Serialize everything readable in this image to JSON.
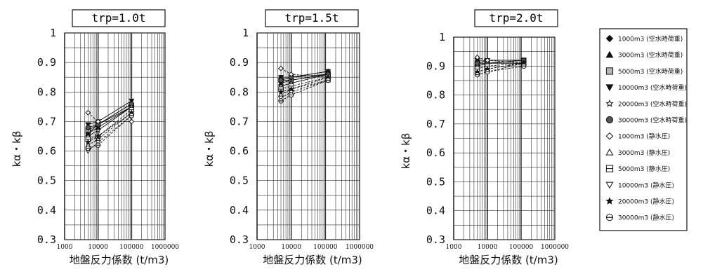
{
  "chart_data": [
    {
      "type": "line",
      "title": "trp=1.0t",
      "xlabel": "地盤反力係数 (t/m3)",
      "ylabel": "kα・kβ",
      "xscale": "log",
      "xlim": [
        1000,
        1000000
      ],
      "ylim": [
        0.3,
        1.0
      ],
      "x_ticks": [
        "1000",
        "10000",
        "100000",
        "1000000"
      ],
      "y_ticks": [
        "0.3",
        "0.4",
        "0.5",
        "0.6",
        "0.7",
        "0.8",
        "0.9",
        "1"
      ],
      "grid": true,
      "x": [
        5000,
        10000,
        100000
      ],
      "series": [
        {
          "name": "1000m3 (空水時荷重)",
          "values": [
            0.66,
            0.69,
            0.76
          ]
        },
        {
          "name": "3000m3 (空水時荷重)",
          "values": [
            0.66,
            0.68,
            0.75
          ]
        },
        {
          "name": "5000m3 (空水時荷重)",
          "values": [
            0.67,
            0.69,
            0.75
          ]
        },
        {
          "name": "10000m3 (空水時荷重)",
          "values": [
            0.69,
            0.7,
            0.77
          ]
        },
        {
          "name": "20000m3 (空水時荷重)",
          "values": [
            0.65,
            0.67,
            0.75
          ]
        },
        {
          "name": "30000m3 (空水時荷重)",
          "values": [
            0.68,
            0.69,
            0.76
          ]
        },
        {
          "name": "1000m3 (静水圧)",
          "values": [
            0.73,
            0.7,
            0.7
          ]
        },
        {
          "name": "3000m3 (静水圧)",
          "values": [
            0.62,
            0.64,
            0.73
          ]
        },
        {
          "name": "5000m3 (静水圧)",
          "values": [
            0.64,
            0.65,
            0.74
          ]
        },
        {
          "name": "10000m3 (静水圧)",
          "values": [
            0.6,
            0.63,
            0.72
          ]
        },
        {
          "name": "20000m3 (静水圧)",
          "values": [
            0.63,
            0.65,
            0.73
          ]
        },
        {
          "name": "30000m3 (静水圧)",
          "values": [
            0.61,
            0.62,
            0.72
          ]
        }
      ]
    },
    {
      "type": "line",
      "title": "trp=1.5t",
      "xlabel": "地盤反力係数 (t/m3)",
      "ylabel": "kα・kβ",
      "xscale": "log",
      "xlim": [
        1000,
        1000000
      ],
      "ylim": [
        0.3,
        1.0
      ],
      "x_ticks": [
        "1000",
        "10000",
        "100000",
        "1000000"
      ],
      "y_ticks": [
        "0.3",
        "0.4",
        "0.5",
        "0.6",
        "0.7",
        "0.8",
        "0.9",
        "1"
      ],
      "grid": true,
      "x": [
        5000,
        10000,
        120000
      ],
      "series": [
        {
          "name": "1000m3 (空水時荷重)",
          "values": [
            0.84,
            0.85,
            0.87
          ]
        },
        {
          "name": "3000m3 (空水時荷重)",
          "values": [
            0.83,
            0.84,
            0.86
          ]
        },
        {
          "name": "5000m3 (空水時荷重)",
          "values": [
            0.84,
            0.84,
            0.86
          ]
        },
        {
          "name": "10000m3 (空水時荷重)",
          "values": [
            0.85,
            0.85,
            0.87
          ]
        },
        {
          "name": "20000m3 (空水時荷重)",
          "values": [
            0.82,
            0.83,
            0.86
          ]
        },
        {
          "name": "30000m3 (空水時荷重)",
          "values": [
            0.84,
            0.85,
            0.86
          ]
        },
        {
          "name": "1000m3 (静水圧)",
          "values": [
            0.88,
            0.86,
            0.85
          ]
        },
        {
          "name": "3000m3 (静水圧)",
          "values": [
            0.79,
            0.81,
            0.84
          ]
        },
        {
          "name": "5000m3 (静水圧)",
          "values": [
            0.81,
            0.82,
            0.85
          ]
        },
        {
          "name": "10000m3 (静水圧)",
          "values": [
            0.78,
            0.8,
            0.84
          ]
        },
        {
          "name": "20000m3 (静水圧)",
          "values": [
            0.8,
            0.81,
            0.85
          ]
        },
        {
          "name": "30000m3 (静水圧)",
          "values": [
            0.77,
            0.79,
            0.84
          ]
        }
      ]
    },
    {
      "type": "line",
      "title": "trp=2.0t",
      "xlabel": "地盤反力係数 (t/m3)",
      "ylabel": "kα・kβ",
      "xscale": "log",
      "xlim": [
        1000,
        1000000
      ],
      "ylim": [
        0.3,
        1.0
      ],
      "x_ticks": [
        "1000",
        "10000",
        "100000",
        "1000000"
      ],
      "y_ticks": [
        "0.3",
        "0.4",
        "0.5",
        "0.6",
        "0.7",
        "0.8",
        "0.9",
        "1"
      ],
      "grid": true,
      "x": [
        5000,
        10000,
        120000
      ],
      "series": [
        {
          "name": "1000m3 (空水時荷重)",
          "values": [
            0.91,
            0.92,
            0.92
          ]
        },
        {
          "name": "3000m3 (空水時荷重)",
          "values": [
            0.9,
            0.91,
            0.91
          ]
        },
        {
          "name": "5000m3 (空水時荷重)",
          "values": [
            0.91,
            0.91,
            0.92
          ]
        },
        {
          "name": "10000m3 (空水時荷重)",
          "values": [
            0.92,
            0.92,
            0.92
          ]
        },
        {
          "name": "20000m3 (空水時荷重)",
          "values": [
            0.9,
            0.91,
            0.91
          ]
        },
        {
          "name": "30000m3 (空水時荷重)",
          "values": [
            0.91,
            0.91,
            0.92
          ]
        },
        {
          "name": "1000m3 (静水圧)",
          "values": [
            0.93,
            0.92,
            0.91
          ]
        },
        {
          "name": "3000m3 (静水圧)",
          "values": [
            0.88,
            0.89,
            0.91
          ]
        },
        {
          "name": "5000m3 (静水圧)",
          "values": [
            0.89,
            0.9,
            0.91
          ]
        },
        {
          "name": "10000m3 (静水圧)",
          "values": [
            0.87,
            0.88,
            0.91
          ]
        },
        {
          "name": "20000m3 (静水圧)",
          "values": [
            0.88,
            0.89,
            0.91
          ]
        },
        {
          "name": "30000m3 (静水圧)",
          "values": [
            0.87,
            0.88,
            0.9
          ]
        }
      ]
    }
  ],
  "legend": {
    "placement": "right",
    "entries": [
      {
        "label": "1000m3 (空水時荷重)",
        "marker": "diamond-filled"
      },
      {
        "label": "3000m3 (空水時荷重)",
        "marker": "triangle-filled"
      },
      {
        "label": "5000m3 (空水時荷重)",
        "marker": "square-dotted"
      },
      {
        "label": "10000m3 (空水時荷重)",
        "marker": "triangle-down-filled"
      },
      {
        "label": "20000m3 (空水時荷重)",
        "marker": "star-open"
      },
      {
        "label": "30000m3 (空水時荷重)",
        "marker": "circle-filled"
      },
      {
        "label": "1000m3 (静水圧)",
        "marker": "diamond-open"
      },
      {
        "label": "3000m3 (静水圧)",
        "marker": "triangle-open"
      },
      {
        "label": "5000m3 (静水圧)",
        "marker": "square-lined"
      },
      {
        "label": "10000m3 (静水圧)",
        "marker": "triangle-down-open"
      },
      {
        "label": "20000m3 (静水圧)",
        "marker": "star-filled"
      },
      {
        "label": "30000m3 (静水圧)",
        "marker": "circle-minus"
      }
    ]
  },
  "colors": {
    "ink": "#111111",
    "grid": "#333333",
    "background": "#ffffff"
  }
}
